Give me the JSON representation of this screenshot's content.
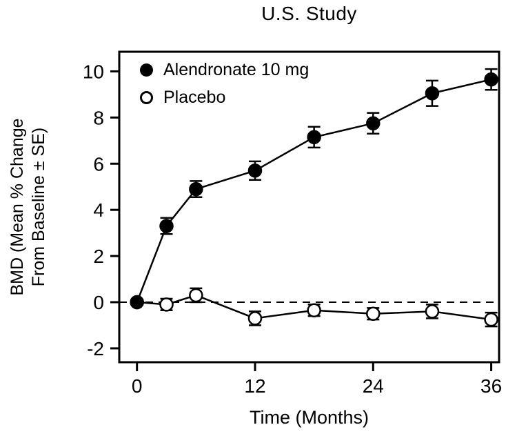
{
  "chart_data": {
    "type": "line",
    "title": "U.S. Study",
    "xlabel": "Time (Months)",
    "ylabel": "BMD (Mean % Change From Baseline ± SE)",
    "ylabel_lines": [
      "BMD (Mean % Change",
      "From Baseline ± SE)"
    ],
    "xlim": [
      -1.8,
      36.8
    ],
    "ylim": [
      -2.6,
      10.85
    ],
    "xticks": [
      0,
      12,
      24,
      36
    ],
    "yticks": [
      -2,
      0,
      2,
      4,
      6,
      8,
      10
    ],
    "grid": false,
    "zero_line_style": "dashed",
    "legend_position": "top-left-inside",
    "line_color": "#000000",
    "background_color": "#ffffff",
    "x": [
      0,
      3,
      6,
      12,
      18,
      24,
      30,
      36
    ],
    "series": [
      {
        "name": "Alendronate 10 mg",
        "marker": "filled-circle",
        "values": [
          0.0,
          3.3,
          4.9,
          5.7,
          7.15,
          7.75,
          9.05,
          9.65
        ],
        "se": [
          0,
          0.35,
          0.35,
          0.4,
          0.45,
          0.45,
          0.55,
          0.45
        ]
      },
      {
        "name": "Placebo",
        "marker": "open-circle",
        "values": [
          0.0,
          -0.1,
          0.3,
          -0.7,
          -0.35,
          -0.5,
          -0.4,
          -0.75
        ],
        "se": [
          0,
          0.25,
          0.3,
          0.3,
          0.25,
          0.25,
          0.3,
          0.3
        ]
      }
    ]
  }
}
